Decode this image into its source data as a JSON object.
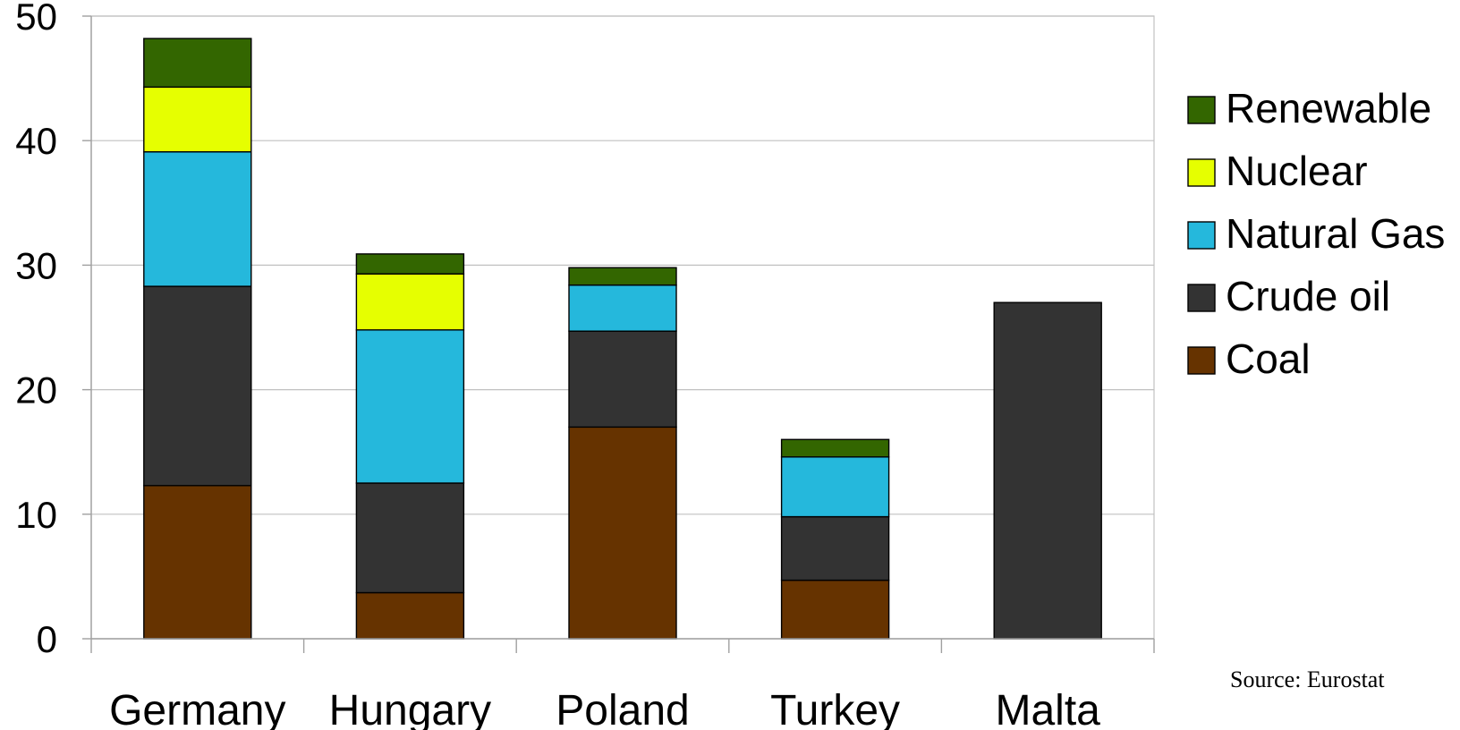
{
  "chart_data": {
    "type": "bar",
    "stacked": true,
    "categories": [
      "Germany",
      "Hungary",
      "Poland",
      "Turkey",
      "Malta"
    ],
    "series": [
      {
        "name": "Coal",
        "color": "#663300",
        "values": [
          12.3,
          3.7,
          17.0,
          4.7,
          0
        ]
      },
      {
        "name": "Crude oil",
        "color": "#333333",
        "values": [
          16.0,
          8.8,
          7.7,
          5.1,
          27.0
        ]
      },
      {
        "name": "Natural Gas",
        "color": "#25B8DC",
        "values": [
          10.8,
          12.3,
          3.7,
          4.8,
          0
        ]
      },
      {
        "name": "Nuclear",
        "color": "#E6FF00",
        "values": [
          5.2,
          4.5,
          0,
          0,
          0
        ]
      },
      {
        "name": "Renewable",
        "color": "#336600",
        "values": [
          3.9,
          1.6,
          1.4,
          1.4,
          0
        ]
      }
    ],
    "ylim": [
      0,
      50
    ],
    "yticks": [
      0,
      10,
      20,
      30,
      40,
      50
    ],
    "grid": true,
    "legend_position": "right",
    "source": "Source: Eurostat",
    "title": "",
    "xlabel": "",
    "ylabel": ""
  }
}
